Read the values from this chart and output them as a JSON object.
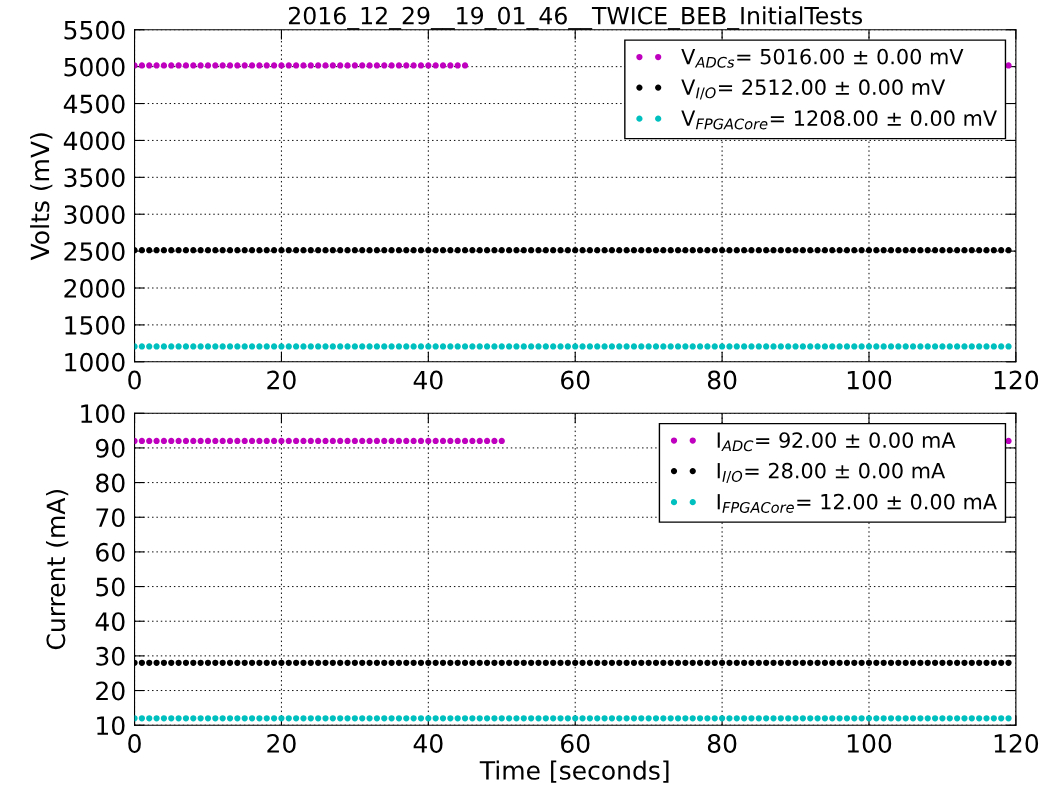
{
  "chart_data": [
    {
      "type": "scatter",
      "title": "2016_12_29__19_01_46__TWICE_BEB_InitialTests",
      "ylabel": "Volts (mV)",
      "xlim": [
        0,
        120
      ],
      "ylim": [
        1000,
        5500
      ],
      "xticks": [
        0,
        20,
        40,
        60,
        80,
        100,
        120
      ],
      "yticks": [
        1000,
        1500,
        2000,
        2500,
        3000,
        3500,
        4000,
        4500,
        5000,
        5500
      ],
      "grid": true,
      "legend": "top right",
      "marker": "circle",
      "x": [
        0,
        1,
        2,
        3,
        4,
        5,
        6,
        7,
        8,
        9,
        10,
        11,
        12,
        13,
        14,
        15,
        16,
        17,
        18,
        19,
        20,
        21,
        22,
        23,
        24,
        25,
        26,
        27,
        28,
        29,
        30,
        31,
        32,
        33,
        34,
        35,
        36,
        37,
        38,
        39,
        40,
        41,
        42,
        43,
        44,
        45,
        46,
        47,
        48,
        49,
        50,
        51,
        52,
        53,
        54,
        55,
        56,
        57,
        58,
        59,
        60,
        61,
        62,
        63,
        64,
        65,
        66,
        67,
        68,
        69,
        70,
        71,
        72,
        73,
        74,
        75,
        76,
        77,
        78,
        79,
        80,
        81,
        82,
        83,
        84,
        85,
        86,
        87,
        88,
        89,
        90,
        91,
        92,
        93,
        94,
        95,
        96,
        97,
        98,
        99,
        100,
        101,
        102,
        103,
        104,
        105,
        106,
        107,
        108,
        109,
        110,
        111,
        112,
        113,
        114,
        115,
        116,
        117,
        118,
        119
      ],
      "series": [
        {
          "name": "V$_{ADCs}$= 5016.00 ± 0.00 mV",
          "color": "#bf00bf",
          "values": [
            5016,
            5016,
            5016,
            5016,
            5016,
            5016,
            5016,
            5016,
            5016,
            5016,
            5016,
            5016,
            5016,
            5016,
            5016,
            5016,
            5016,
            5016,
            5016,
            5016,
            5016,
            5016,
            5016,
            5016,
            5016,
            5016,
            5016,
            5016,
            5016,
            5016,
            5016,
            5016,
            5016,
            5016,
            5016,
            5016,
            5016,
            5016,
            5016,
            5016,
            5016,
            5016,
            5016,
            5016,
            5016,
            5016,
            null,
            null,
            null,
            null,
            null,
            null,
            null,
            null,
            null,
            null,
            null,
            null,
            null,
            null,
            null,
            null,
            null,
            null,
            null,
            null,
            null,
            null,
            null,
            null,
            null,
            null,
            null,
            null,
            null,
            null,
            null,
            null,
            null,
            null,
            null,
            null,
            null,
            null,
            null,
            null,
            null,
            null,
            null,
            null,
            null,
            null,
            null,
            null,
            null,
            null,
            null,
            null,
            null,
            null,
            null,
            null,
            null,
            null,
            null,
            null,
            null,
            null,
            null,
            null,
            null,
            null,
            null,
            null,
            null,
            null,
            null,
            null,
            null,
            5016
          ]
        },
        {
          "name": "V$_{I/O}$= 2512.00 ± 0.00 mV",
          "color": "#000000",
          "values": [
            2512,
            2512,
            2512,
            2512,
            2512,
            2512,
            2512,
            2512,
            2512,
            2512,
            2512,
            2512,
            2512,
            2512,
            2512,
            2512,
            2512,
            2512,
            2512,
            2512,
            2512,
            2512,
            2512,
            2512,
            2512,
            2512,
            2512,
            2512,
            2512,
            2512,
            2512,
            2512,
            2512,
            2512,
            2512,
            2512,
            2512,
            2512,
            2512,
            2512,
            2512,
            2512,
            2512,
            2512,
            2512,
            2512,
            2512,
            2512,
            2512,
            2512,
            2512,
            2512,
            2512,
            2512,
            2512,
            2512,
            2512,
            2512,
            2512,
            2512,
            2512,
            2512,
            2512,
            2512,
            2512,
            2512,
            2512,
            2512,
            2512,
            2512,
            2512,
            2512,
            2512,
            2512,
            2512,
            2512,
            2512,
            2512,
            2512,
            2512,
            2512,
            2512,
            2512,
            2512,
            2512,
            2512,
            2512,
            2512,
            2512,
            2512,
            2512,
            2512,
            2512,
            2512,
            2512,
            2512,
            2512,
            2512,
            2512,
            2512,
            2512,
            2512,
            2512,
            2512,
            2512,
            2512,
            2512,
            2512,
            2512,
            2512,
            2512,
            2512,
            2512,
            2512,
            2512,
            2512,
            2512,
            2512,
            2512,
            2512
          ]
        },
        {
          "name": "V$_{FPGACore}$= 1208.00 ± 0.00 mV",
          "color": "#00bfbf",
          "values": [
            1208,
            1208,
            1208,
            1208,
            1208,
            1208,
            1208,
            1208,
            1208,
            1208,
            1208,
            1208,
            1208,
            1208,
            1208,
            1208,
            1208,
            1208,
            1208,
            1208,
            1208,
            1208,
            1208,
            1208,
            1208,
            1208,
            1208,
            1208,
            1208,
            1208,
            1208,
            1208,
            1208,
            1208,
            1208,
            1208,
            1208,
            1208,
            1208,
            1208,
            1208,
            1208,
            1208,
            1208,
            1208,
            1208,
            1208,
            1208,
            1208,
            1208,
            1208,
            1208,
            1208,
            1208,
            1208,
            1208,
            1208,
            1208,
            1208,
            1208,
            1208,
            1208,
            1208,
            1208,
            1208,
            1208,
            1208,
            1208,
            1208,
            1208,
            1208,
            1208,
            1208,
            1208,
            1208,
            1208,
            1208,
            1208,
            1208,
            1208,
            1208,
            1208,
            1208,
            1208,
            1208,
            1208,
            1208,
            1208,
            1208,
            1208,
            1208,
            1208,
            1208,
            1208,
            1208,
            1208,
            1208,
            1208,
            1208,
            1208,
            1208,
            1208,
            1208,
            1208,
            1208,
            1208,
            1208,
            1208,
            1208,
            1208,
            1208,
            1208,
            1208,
            1208,
            1208,
            1208,
            1208,
            1208,
            1208,
            1208
          ]
        }
      ]
    },
    {
      "type": "scatter",
      "xlabel": "Time [seconds]",
      "ylabel": "Current (mA)",
      "xlim": [
        0,
        120
      ],
      "ylim": [
        10,
        100
      ],
      "xticks": [
        0,
        20,
        40,
        60,
        80,
        100,
        120
      ],
      "yticks": [
        10,
        20,
        30,
        40,
        50,
        60,
        70,
        80,
        90,
        100
      ],
      "grid": true,
      "legend": "top right",
      "marker": "circle",
      "x": [
        0,
        1,
        2,
        3,
        4,
        5,
        6,
        7,
        8,
        9,
        10,
        11,
        12,
        13,
        14,
        15,
        16,
        17,
        18,
        19,
        20,
        21,
        22,
        23,
        24,
        25,
        26,
        27,
        28,
        29,
        30,
        31,
        32,
        33,
        34,
        35,
        36,
        37,
        38,
        39,
        40,
        41,
        42,
        43,
        44,
        45,
        46,
        47,
        48,
        49,
        50,
        51,
        52,
        53,
        54,
        55,
        56,
        57,
        58,
        59,
        60,
        61,
        62,
        63,
        64,
        65,
        66,
        67,
        68,
        69,
        70,
        71,
        72,
        73,
        74,
        75,
        76,
        77,
        78,
        79,
        80,
        81,
        82,
        83,
        84,
        85,
        86,
        87,
        88,
        89,
        90,
        91,
        92,
        93,
        94,
        95,
        96,
        97,
        98,
        99,
        100,
        101,
        102,
        103,
        104,
        105,
        106,
        107,
        108,
        109,
        110,
        111,
        112,
        113,
        114,
        115,
        116,
        117,
        118,
        119
      ],
      "series": [
        {
          "name": "I$_{ADC}$= 92.00 ± 0.00 mA",
          "color": "#bf00bf",
          "values": [
            92,
            92,
            92,
            92,
            92,
            92,
            92,
            92,
            92,
            92,
            92,
            92,
            92,
            92,
            92,
            92,
            92,
            92,
            92,
            92,
            92,
            92,
            92,
            92,
            92,
            92,
            92,
            92,
            92,
            92,
            92,
            92,
            92,
            92,
            92,
            92,
            92,
            92,
            92,
            92,
            92,
            92,
            92,
            92,
            92,
            92,
            92,
            92,
            92,
            92,
            92,
            null,
            null,
            null,
            null,
            null,
            null,
            null,
            null,
            null,
            null,
            null,
            null,
            null,
            null,
            null,
            null,
            null,
            null,
            null,
            null,
            null,
            null,
            null,
            null,
            null,
            null,
            null,
            null,
            null,
            null,
            null,
            null,
            null,
            null,
            null,
            null,
            null,
            null,
            null,
            null,
            null,
            null,
            null,
            null,
            null,
            null,
            null,
            null,
            null,
            null,
            null,
            null,
            null,
            null,
            null,
            null,
            null,
            null,
            null,
            null,
            null,
            null,
            null,
            null,
            null,
            null,
            null,
            null,
            92
          ]
        },
        {
          "name": "I$_{I/O}$= 28.00 ± 0.00 mA",
          "color": "#000000",
          "values": [
            28,
            28,
            28,
            28,
            28,
            28,
            28,
            28,
            28,
            28,
            28,
            28,
            28,
            28,
            28,
            28,
            28,
            28,
            28,
            28,
            28,
            28,
            28,
            28,
            28,
            28,
            28,
            28,
            28,
            28,
            28,
            28,
            28,
            28,
            28,
            28,
            28,
            28,
            28,
            28,
            28,
            28,
            28,
            28,
            28,
            28,
            28,
            28,
            28,
            28,
            28,
            28,
            28,
            28,
            28,
            28,
            28,
            28,
            28,
            28,
            28,
            28,
            28,
            28,
            28,
            28,
            28,
            28,
            28,
            28,
            28,
            28,
            28,
            28,
            28,
            28,
            28,
            28,
            28,
            28,
            28,
            28,
            28,
            28,
            28,
            28,
            28,
            28,
            28,
            28,
            28,
            28,
            28,
            28,
            28,
            28,
            28,
            28,
            28,
            28,
            28,
            28,
            28,
            28,
            28,
            28,
            28,
            28,
            28,
            28,
            28,
            28,
            28,
            28,
            28,
            28,
            28,
            28,
            28,
            28
          ]
        },
        {
          "name": "I$_{FPGACore}$= 12.00 ± 0.00 mA",
          "color": "#00bfbf",
          "values": [
            12,
            12,
            12,
            12,
            12,
            12,
            12,
            12,
            12,
            12,
            12,
            12,
            12,
            12,
            12,
            12,
            12,
            12,
            12,
            12,
            12,
            12,
            12,
            12,
            12,
            12,
            12,
            12,
            12,
            12,
            12,
            12,
            12,
            12,
            12,
            12,
            12,
            12,
            12,
            12,
            12,
            12,
            12,
            12,
            12,
            12,
            12,
            12,
            12,
            12,
            12,
            12,
            12,
            12,
            12,
            12,
            12,
            12,
            12,
            12,
            12,
            12,
            12,
            12,
            12,
            12,
            12,
            12,
            12,
            12,
            12,
            12,
            12,
            12,
            12,
            12,
            12,
            12,
            12,
            12,
            12,
            12,
            12,
            12,
            12,
            12,
            12,
            12,
            12,
            12,
            12,
            12,
            12,
            12,
            12,
            12,
            12,
            12,
            12,
            12,
            12,
            12,
            12,
            12,
            12,
            12,
            12,
            12,
            12,
            12,
            12,
            12,
            12,
            12,
            12,
            12,
            12,
            12,
            12,
            12
          ]
        }
      ]
    }
  ]
}
